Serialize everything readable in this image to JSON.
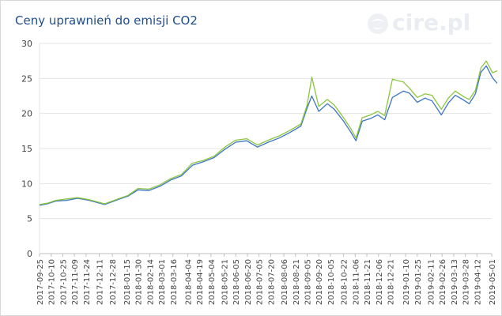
{
  "title": "Ceny uprawnień do emisji CO2",
  "logo": {
    "text": "cire.pl",
    "icon": "cire-globe-icon"
  },
  "chart_data": {
    "type": "line",
    "ylim": [
      0,
      30
    ],
    "yticks": [
      0,
      5,
      10,
      15,
      20,
      25,
      30
    ],
    "grid": true,
    "legend": "none",
    "xticks": [
      "2017-09-25",
      "2017-10-10",
      "2017-10-25",
      "2017-11-09",
      "2017-11-24",
      "2017-12-11",
      "2017-12-28",
      "2018-01-15",
      "2018-01-30",
      "2018-02-14",
      "2018-03-01",
      "2018-03-16",
      "2018-04-04",
      "2018-04-19",
      "2018-05-04",
      "2018-05-21",
      "2018-06-05",
      "2018-06-20",
      "2018-07-05",
      "2018-07-20",
      "2018-08-06",
      "2018-08-21",
      "2018-09-05",
      "2018-09-20",
      "2018-10-05",
      "2018-10-22",
      "2018-11-06",
      "2018-11-21",
      "2018-12-06",
      "2018-12-21",
      "2019-01-10",
      "2019-01-25",
      "2019-02-11",
      "2019-02-26",
      "2019-03-13",
      "2019-03-28",
      "2019-04-12",
      "2019-05-01"
    ],
    "series": [
      {
        "color": "#3a74c4",
        "x": [
          "2017-09-25",
          "2017-10-05",
          "2017-10-16",
          "2017-10-30",
          "2017-11-13",
          "2017-11-28",
          "2017-12-08",
          "2017-12-18",
          "2018-01-04",
          "2018-01-17",
          "2018-01-30",
          "2018-02-13",
          "2018-02-27",
          "2018-03-13",
          "2018-03-27",
          "2018-04-10",
          "2018-04-24",
          "2018-05-08",
          "2018-05-22",
          "2018-06-05",
          "2018-06-19",
          "2018-07-03",
          "2018-07-17",
          "2018-07-31",
          "2018-08-14",
          "2018-08-28",
          "2018-09-05",
          "2018-09-11",
          "2018-09-20",
          "2018-10-01",
          "2018-10-10",
          "2018-10-22",
          "2018-10-31",
          "2018-11-07",
          "2018-11-15",
          "2018-11-26",
          "2018-12-05",
          "2018-12-14",
          "2018-12-24",
          "2019-01-07",
          "2019-01-15",
          "2019-01-25",
          "2019-02-04",
          "2019-02-13",
          "2019-02-25",
          "2019-03-06",
          "2019-03-15",
          "2019-03-26",
          "2019-04-02",
          "2019-04-10",
          "2019-04-17",
          "2019-04-24",
          "2019-05-02",
          "2019-05-08"
        ],
        "y": [
          6.9,
          7.1,
          7.5,
          7.6,
          7.9,
          7.6,
          7.3,
          7.0,
          7.7,
          8.2,
          9.1,
          9.0,
          9.6,
          10.5,
          11.1,
          12.6,
          13.1,
          13.7,
          14.9,
          15.9,
          16.1,
          15.2,
          15.9,
          16.5,
          17.3,
          18.2,
          20.8,
          22.5,
          20.3,
          21.4,
          20.6,
          18.9,
          17.4,
          16.1,
          18.9,
          19.3,
          19.8,
          19.1,
          22.3,
          23.2,
          22.9,
          21.6,
          22.2,
          21.8,
          19.8,
          21.5,
          22.6,
          21.9,
          21.4,
          22.8,
          25.9,
          26.8,
          25.1,
          24.3
        ]
      },
      {
        "color": "#8cc63e",
        "x": [
          "2017-09-25",
          "2017-10-05",
          "2017-10-16",
          "2017-10-30",
          "2017-11-13",
          "2017-11-28",
          "2017-12-08",
          "2017-12-18",
          "2018-01-04",
          "2018-01-17",
          "2018-01-30",
          "2018-02-13",
          "2018-02-27",
          "2018-03-13",
          "2018-03-27",
          "2018-04-10",
          "2018-04-24",
          "2018-05-08",
          "2018-05-22",
          "2018-06-05",
          "2018-06-19",
          "2018-07-03",
          "2018-07-17",
          "2018-07-31",
          "2018-08-14",
          "2018-08-28",
          "2018-09-05",
          "2018-09-11",
          "2018-09-20",
          "2018-10-01",
          "2018-10-10",
          "2018-10-22",
          "2018-10-31",
          "2018-11-07",
          "2018-11-15",
          "2018-11-26",
          "2018-12-05",
          "2018-12-14",
          "2018-12-24",
          "2019-01-07",
          "2019-01-15",
          "2019-01-25",
          "2019-02-04",
          "2019-02-13",
          "2019-02-25",
          "2019-03-06",
          "2019-03-15",
          "2019-03-26",
          "2019-04-02",
          "2019-04-10",
          "2019-04-17",
          "2019-04-24",
          "2019-05-02",
          "2019-05-08"
        ],
        "y": [
          7.0,
          7.2,
          7.6,
          7.8,
          8.0,
          7.7,
          7.4,
          7.1,
          7.8,
          8.3,
          9.3,
          9.2,
          9.8,
          10.7,
          11.3,
          12.9,
          13.3,
          13.9,
          15.2,
          16.2,
          16.4,
          15.5,
          16.2,
          16.8,
          17.6,
          18.5,
          21.2,
          25.2,
          21.0,
          22.0,
          21.2,
          19.4,
          17.9,
          16.5,
          19.4,
          19.8,
          20.3,
          19.7,
          24.9,
          24.5,
          23.6,
          22.3,
          22.8,
          22.6,
          20.6,
          22.2,
          23.2,
          22.4,
          22.0,
          23.3,
          26.5,
          27.5,
          25.8,
          26.1
        ]
      }
    ]
  }
}
